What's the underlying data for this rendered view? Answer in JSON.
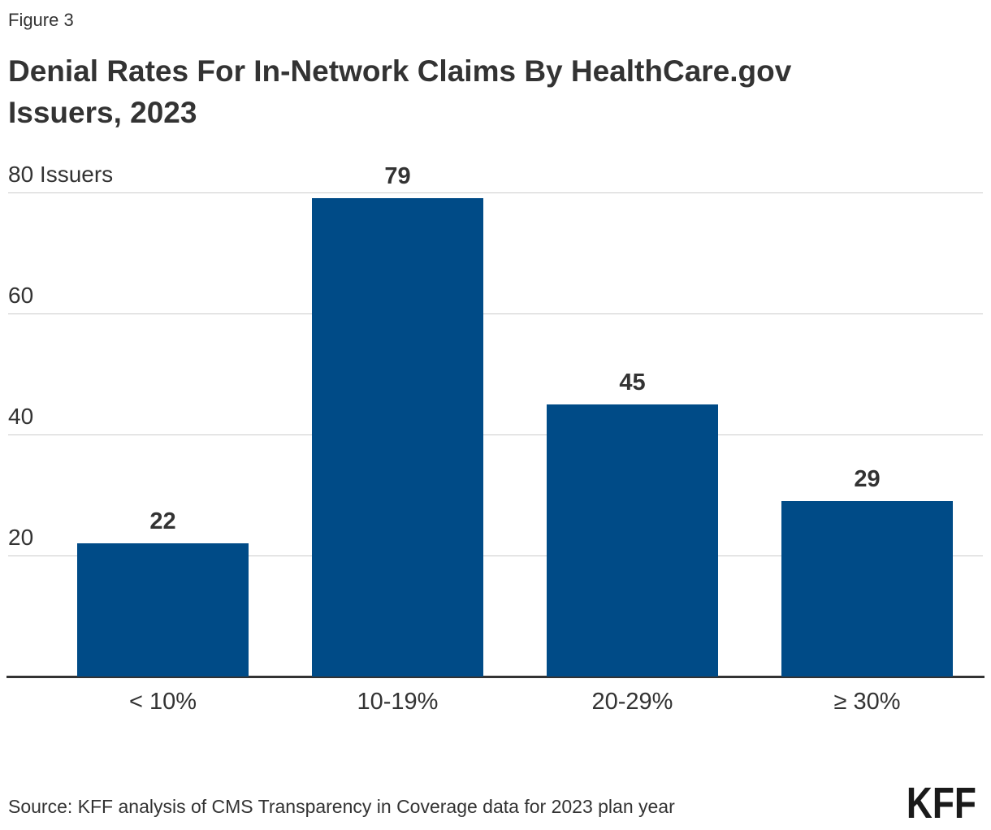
{
  "figure_label": "Figure 3",
  "title_lines": [
    "Denial Rates For In-Network Claims By HealthCare.gov",
    "Issuers, 2023"
  ],
  "source": "Source: KFF analysis of CMS Transparency in Coverage data for 2023 plan year",
  "logo_text": "KFF",
  "colors": {
    "bar": "#004b87",
    "grid": "#cccccc",
    "axis": "#333333",
    "text": "#333333"
  },
  "chart_data": {
    "type": "bar",
    "title": "Denial Rates For In-Network Claims By HealthCare.gov Issuers, 2023",
    "categories": [
      "< 10%",
      "10-19%",
      "20-29%",
      "≥ 30%"
    ],
    "values": [
      22,
      79,
      45,
      29
    ],
    "xlabel": "",
    "ylabel": "Issuers",
    "ylim": [
      0,
      80
    ],
    "yticks": [
      {
        "value": 20,
        "label": "20"
      },
      {
        "value": 40,
        "label": "40"
      },
      {
        "value": 60,
        "label": "60"
      },
      {
        "value": 80,
        "label": "80 Issuers"
      }
    ],
    "grid": "horizontal",
    "legend": "none",
    "value_labels": true
  }
}
